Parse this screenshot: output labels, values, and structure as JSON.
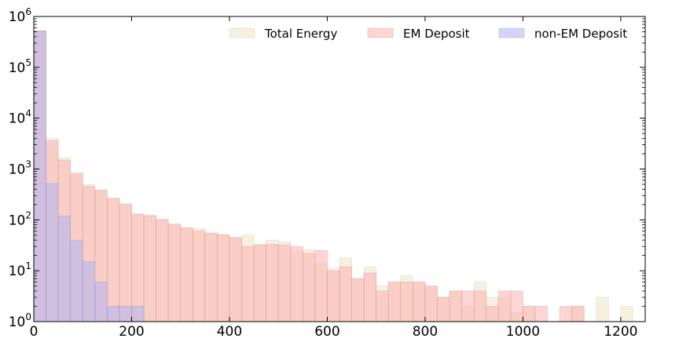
{
  "chart_data": {
    "type": "bar",
    "histogram": true,
    "title": "",
    "xlabel": "",
    "ylabel": "",
    "xlim": [
      0,
      1250
    ],
    "ylim": [
      1,
      1000000
    ],
    "yscale": "log",
    "bin_width": 25,
    "grid": false,
    "legend_position": "top-right",
    "xticks": [
      0,
      200,
      400,
      600,
      800,
      1000,
      1200
    ],
    "xtick_labels": [
      "0",
      "200",
      "400",
      "600",
      "800",
      "1000",
      "1200"
    ],
    "yticks": [
      1,
      10,
      100,
      1000,
      10000,
      100000,
      1000000
    ],
    "ytick_labels": [
      {
        "base": "10",
        "exp": "0"
      },
      {
        "base": "10",
        "exp": "1"
      },
      {
        "base": "10",
        "exp": "2"
      },
      {
        "base": "10",
        "exp": "3"
      },
      {
        "base": "10",
        "exp": "4"
      },
      {
        "base": "10",
        "exp": "5"
      },
      {
        "base": "10",
        "exp": "6"
      }
    ],
    "series": [
      {
        "name": "Total Energy",
        "color": "#efe4c4",
        "edge": "#cfc6a8",
        "bins": [
          [
            0,
            25,
            520000
          ],
          [
            25,
            50,
            4000
          ],
          [
            50,
            75,
            1650
          ],
          [
            75,
            100,
            850
          ],
          [
            100,
            125,
            500
          ],
          [
            125,
            150,
            390
          ],
          [
            150,
            175,
            270
          ],
          [
            175,
            200,
            210
          ],
          [
            200,
            225,
            130
          ],
          [
            225,
            250,
            125
          ],
          [
            250,
            275,
            105
          ],
          [
            275,
            300,
            85
          ],
          [
            300,
            325,
            70
          ],
          [
            325,
            350,
            68
          ],
          [
            350,
            375,
            55
          ],
          [
            375,
            400,
            52
          ],
          [
            400,
            425,
            45
          ],
          [
            425,
            450,
            50
          ],
          [
            450,
            475,
            33
          ],
          [
            475,
            500,
            40
          ],
          [
            500,
            525,
            37
          ],
          [
            525,
            550,
            24
          ],
          [
            550,
            575,
            26
          ],
          [
            575,
            600,
            14
          ],
          [
            600,
            625,
            11
          ],
          [
            625,
            650,
            18
          ],
          [
            650,
            675,
            7
          ],
          [
            675,
            700,
            12
          ],
          [
            700,
            725,
            5
          ],
          [
            725,
            750,
            6
          ],
          [
            750,
            775,
            8
          ],
          [
            775,
            800,
            6
          ],
          [
            800,
            825,
            5
          ],
          [
            825,
            850,
            3
          ],
          [
            850,
            875,
            4
          ],
          [
            875,
            900,
            2
          ],
          [
            900,
            925,
            6
          ],
          [
            925,
            950,
            3
          ],
          [
            950,
            975,
            3
          ],
          [
            975,
            1000,
            1.5
          ],
          [
            1000,
            1025,
            2
          ],
          [
            1025,
            1050,
            1
          ],
          [
            1050,
            1075,
            1
          ],
          [
            1075,
            1100,
            1
          ],
          [
            1100,
            1125,
            2
          ],
          [
            1125,
            1150,
            1
          ],
          [
            1150,
            1175,
            3
          ],
          [
            1175,
            1200,
            1
          ],
          [
            1200,
            1225,
            2
          ]
        ]
      },
      {
        "name": "EM Deposit",
        "color": "#fbb3b0",
        "edge": "#e08a87",
        "bins": [
          [
            0,
            25,
            520000
          ],
          [
            25,
            50,
            3600
          ],
          [
            50,
            75,
            1500
          ],
          [
            75,
            100,
            800
          ],
          [
            100,
            125,
            450
          ],
          [
            125,
            150,
            380
          ],
          [
            150,
            175,
            260
          ],
          [
            175,
            200,
            200
          ],
          [
            200,
            225,
            130
          ],
          [
            225,
            250,
            120
          ],
          [
            250,
            275,
            100
          ],
          [
            275,
            300,
            80
          ],
          [
            300,
            325,
            70
          ],
          [
            325,
            350,
            60
          ],
          [
            350,
            375,
            55
          ],
          [
            375,
            400,
            50
          ],
          [
            400,
            425,
            45
          ],
          [
            425,
            450,
            30
          ],
          [
            450,
            475,
            32
          ],
          [
            475,
            500,
            33
          ],
          [
            500,
            525,
            32
          ],
          [
            525,
            550,
            30
          ],
          [
            550,
            575,
            22
          ],
          [
            575,
            600,
            25
          ],
          [
            600,
            625,
            10
          ],
          [
            625,
            650,
            12
          ],
          [
            650,
            675,
            7
          ],
          [
            675,
            700,
            9
          ],
          [
            700,
            725,
            4
          ],
          [
            725,
            750,
            6
          ],
          [
            750,
            775,
            6
          ],
          [
            775,
            800,
            6
          ],
          [
            800,
            825,
            5
          ],
          [
            825,
            850,
            3
          ],
          [
            850,
            875,
            4
          ],
          [
            875,
            900,
            4
          ],
          [
            900,
            925,
            4
          ],
          [
            925,
            950,
            2
          ],
          [
            950,
            975,
            4
          ],
          [
            975,
            1000,
            4
          ],
          [
            1000,
            1025,
            2
          ],
          [
            1025,
            1050,
            2
          ],
          [
            1050,
            1075,
            1
          ],
          [
            1075,
            1100,
            2
          ],
          [
            1100,
            1125,
            2
          ],
          [
            1125,
            1150,
            1
          ],
          [
            1150,
            1175,
            1
          ],
          [
            1175,
            1200,
            1
          ],
          [
            1200,
            1225,
            1
          ]
        ]
      },
      {
        "name": "non-EM Deposit",
        "color": "#aeb2f2",
        "edge": "#8a8ee0",
        "bins": [
          [
            0,
            25,
            520000
          ],
          [
            25,
            50,
            520
          ],
          [
            50,
            75,
            120
          ],
          [
            75,
            100,
            40
          ],
          [
            100,
            125,
            15
          ],
          [
            125,
            150,
            6
          ],
          [
            150,
            175,
            2
          ],
          [
            175,
            200,
            2
          ],
          [
            200,
            225,
            2
          ]
        ]
      }
    ]
  }
}
